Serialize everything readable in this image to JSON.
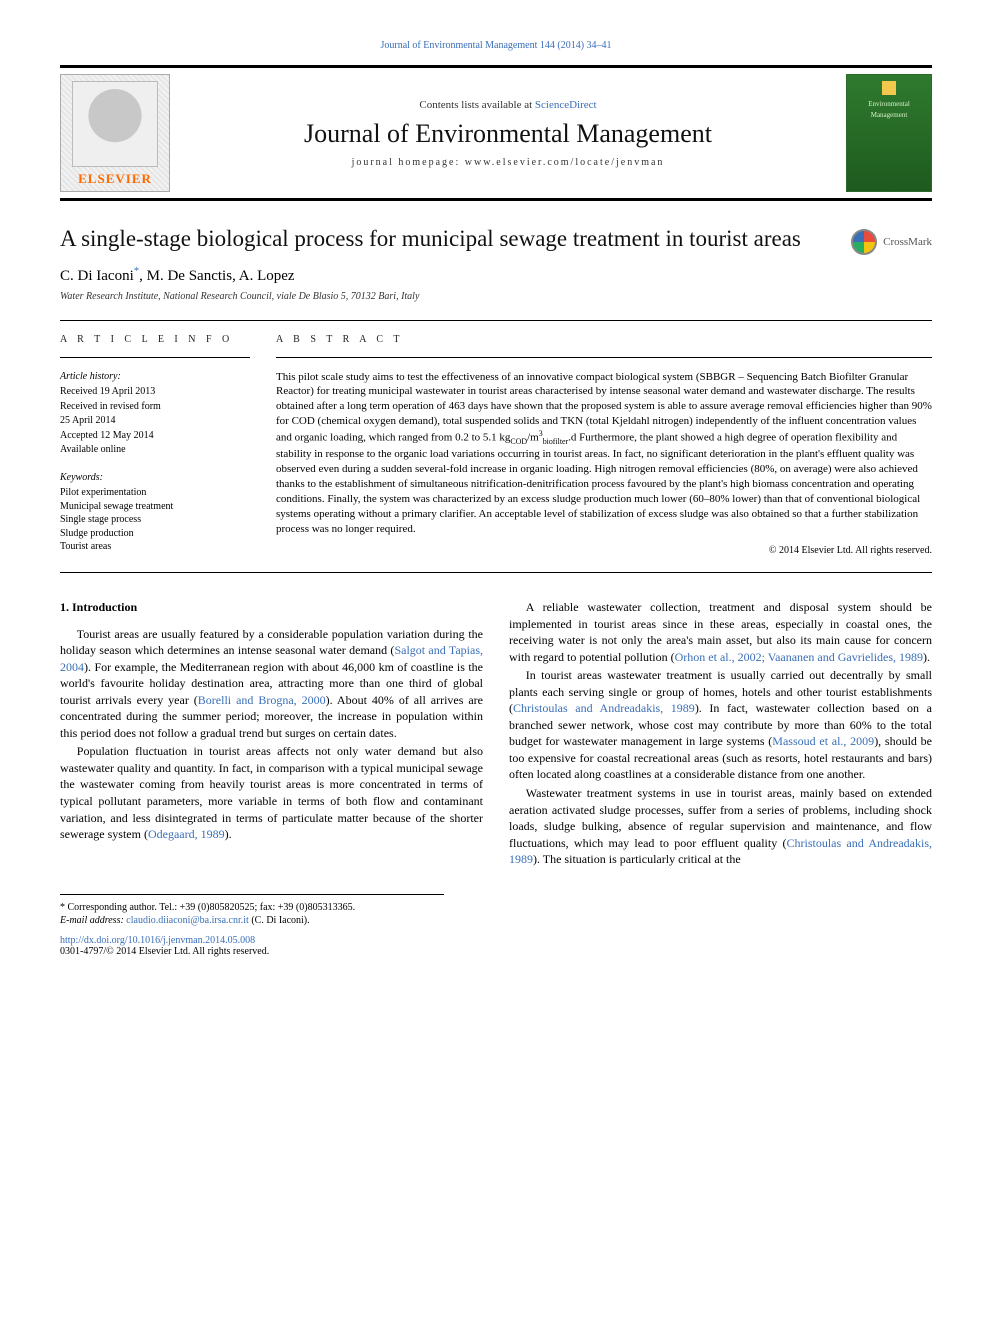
{
  "page_bg": "#ffffff",
  "text_color": "#000000",
  "link_color": "#3a6fb7",
  "accent_orange": "#ff6a00",
  "top_link": "Journal of Environmental Management 144 (2014) 34–41",
  "masthead": {
    "publisher": "ELSEVIER",
    "contents_prefix": "Contents lists available at ",
    "contents_link": "ScienceDirect",
    "journal_title": "Journal of Environmental Management",
    "homepage_prefix": "journal homepage: ",
    "homepage": "www.elsevier.com/locate/jenvman",
    "cover_line1": "Environmental",
    "cover_line2": "Management"
  },
  "crossmark_label": "CrossMark",
  "article": {
    "title": "A single-stage biological process for municipal sewage treatment in tourist areas",
    "authors_html": "C. Di Iaconi*, M. De Sanctis, A. Lopez",
    "author1": "C. Di Iaconi",
    "author2": "M. De Sanctis",
    "author3": "A. Lopez",
    "corr_mark": "*",
    "affiliation": "Water Research Institute, National Research Council, viale De Blasio 5, 70132 Bari, Italy"
  },
  "info": {
    "heading": "A R T I C L E  I N F O",
    "hist_head": "Article history:",
    "hist": [
      "Received 19 April 2013",
      "Received in revised form",
      "25 April 2014",
      "Accepted 12 May 2014",
      "Available online"
    ],
    "kw_head": "Keywords:",
    "keywords": [
      "Pilot experimentation",
      "Municipal sewage treatment",
      "Single stage process",
      "Sludge production",
      "Tourist areas"
    ]
  },
  "abstract": {
    "heading": "A B S T R A C T",
    "text_pre": "This pilot scale study aims to test the effectiveness of an innovative compact biological system (SBBGR – Sequencing Batch Biofilter Granular Reactor) for treating municipal wastewater in tourist areas characterised by intense seasonal water demand and wastewater discharge. The results obtained after a long term operation of 463 days have shown that the proposed system is able to assure average removal efficiencies higher than 90% for COD (chemical oxygen demand), total suspended solids and TKN (total Kjeldahl nitrogen) independently of the influent concentration values and organic loading, which ranged from 0.2 to 5.1 kg",
    "unit_sub1": "COD",
    "unit_mid": "/m",
    "unit_sup": "3",
    "unit_sub2": "biofilter",
    "unit_end": ".d",
    "text_post": " Furthermore, the plant showed a high degree of operation flexibility and stability in response to the organic load variations occurring in tourist areas. In fact, no significant deterioration in the plant's effluent quality was observed even during a sudden several-fold increase in organic loading. High nitrogen removal efficiencies (80%, on average) were also achieved thanks to the establishment of simultaneous nitrification-denitrification process favoured by the plant's high biomass concentration and operating conditions. Finally, the system was characterized by an excess sludge production much lower (60–80% lower) than that of conventional biological systems operating without a primary clarifier. An acceptable level of stabilization of excess sludge was also obtained so that a further stabilization process was no longer required.",
    "copyright": "© 2014 Elsevier Ltd. All rights reserved."
  },
  "section1": {
    "heading": "1.  Introduction"
  },
  "paras": {
    "p1a": "Tourist areas are usually featured by a considerable population variation during the holiday season which determines an intense seasonal water demand (",
    "p1c1": "Salgot and Tapias, 2004",
    "p1b": "). For example, the Mediterranean region with about 46,000 km of coastline is the world's favourite holiday destination area, attracting more than one third of global tourist arrivals every year (",
    "p1c2": "Borelli and Brogna, 2000",
    "p1c": "). About 40% of all arrives are concentrated during the summer period; moreover, the increase in population within this period does not follow a gradual trend but surges on certain dates.",
    "p2a": "Population fluctuation in tourist areas affects not only water demand but also wastewater quality and quantity. In fact, in comparison with a typical municipal sewage the wastewater coming from heavily tourist areas is more concentrated in terms of typical pollutant parameters, more variable in terms of both flow and contaminant variation, and less disintegrated in terms of particulate matter because of the shorter sewerage system (",
    "p2c1": "Odegaard, 1989",
    "p2b": ").",
    "p3a": "A reliable wastewater collection, treatment and disposal system should be implemented in tourist areas since in these areas, especially in coastal ones, the receiving water is not only the area's main asset, but also its main cause for concern with regard to potential pollution (",
    "p3c1": "Orhon et al., 2002; Vaananen and Gavrielides, 1989",
    "p3b": ").",
    "p4a": "In tourist areas wastewater treatment is usually carried out decentrally by small plants each serving single or group of homes, hotels and other tourist establishments (",
    "p4c1": "Christoulas and Andreadakis, 1989",
    "p4b": "). In fact, wastewater collection based on a branched sewer network, whose cost may contribute by more than 60% to the total budget for wastewater management in large systems (",
    "p4c2": "Massoud et al., 2009",
    "p4c": "), should be too expensive for coastal recreational areas (such as resorts, hotel restaurants and bars) often located along coastlines at a considerable distance from one another.",
    "p5a": "Wastewater treatment systems in use in tourist areas, mainly based on extended aeration activated sludge processes, suffer from a series of problems, including shock loads, sludge bulking, absence of regular supervision and maintenance, and flow fluctuations, which may lead to poor effluent quality (",
    "p5c1": "Christoulas and Andreadakis, 1989",
    "p5b": "). The situation is particularly critical at the"
  },
  "footnote": {
    "corr": "* Corresponding author. Tel.: +39 (0)805820525; fax: +39 (0)805313365.",
    "email_label": "E-mail address: ",
    "email": "claudio.diiaconi@ba.irsa.cnr.it",
    "email_tail": " (C. Di Iaconi)."
  },
  "doi": {
    "link": "http://dx.doi.org/10.1016/j.jenvman.2014.05.008",
    "issn_line": "0301-4797/© 2014 Elsevier Ltd. All rights reserved."
  }
}
